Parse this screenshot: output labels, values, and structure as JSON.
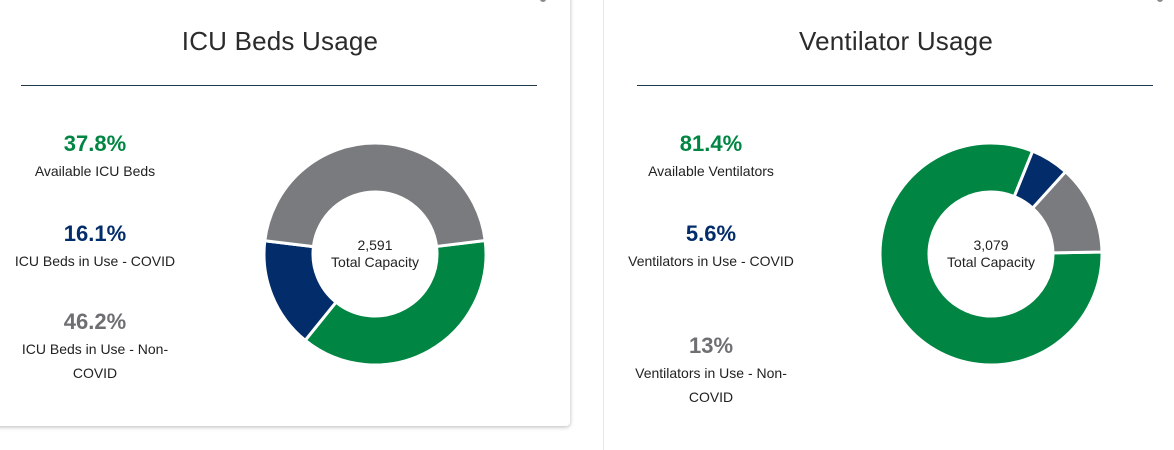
{
  "panels": [
    {
      "title": "ICU Beds Usage",
      "stats": [
        {
          "value": "37.8%",
          "label": "Available ICU Beds"
        },
        {
          "value": "16.1%",
          "label": "ICU Beds in Use - COVID"
        },
        {
          "value": "46.2%",
          "label": "ICU Beds in Use - Non-COVID"
        }
      ],
      "center_value": "2,591",
      "center_label": "Total Capacity"
    },
    {
      "title": "Ventilator Usage",
      "stats": [
        {
          "value": "81.4%",
          "label": "Available Ventilators"
        },
        {
          "value": "5.6%",
          "label": "Ventilators in Use - COVID"
        },
        {
          "value": "13%",
          "label": "Ventilators in Use - Non-COVID"
        }
      ],
      "center_value": "3,079",
      "center_label": "Total Capacity"
    }
  ],
  "colors": {
    "available": "#008542",
    "in_use_covid": "#032d6a",
    "in_use_non_covid": "#7a7b7f",
    "title_rule": "#1f3a4d"
  },
  "chart_data": [
    {
      "type": "pie",
      "categories": [
        "Available ICU Beds",
        "ICU Beds in Use - COVID",
        "ICU Beds in Use - Non-COVID"
      ],
      "values": [
        37.8,
        16.1,
        46.2
      ],
      "colors": [
        "#008542",
        "#032d6a",
        "#7a7b7f"
      ],
      "title": "ICU Beds Usage",
      "center_value": "2,591",
      "center_label": "Total Capacity"
    },
    {
      "type": "pie",
      "categories": [
        "Available Ventilators",
        "Ventilators in Use - COVID",
        "Ventilators in Use - Non-COVID"
      ],
      "values": [
        81.4,
        5.6,
        13
      ],
      "colors": [
        "#008542",
        "#032d6a",
        "#7a7b7f"
      ],
      "title": "Ventilator Usage",
      "center_value": "3,079",
      "center_label": "Total Capacity"
    }
  ]
}
